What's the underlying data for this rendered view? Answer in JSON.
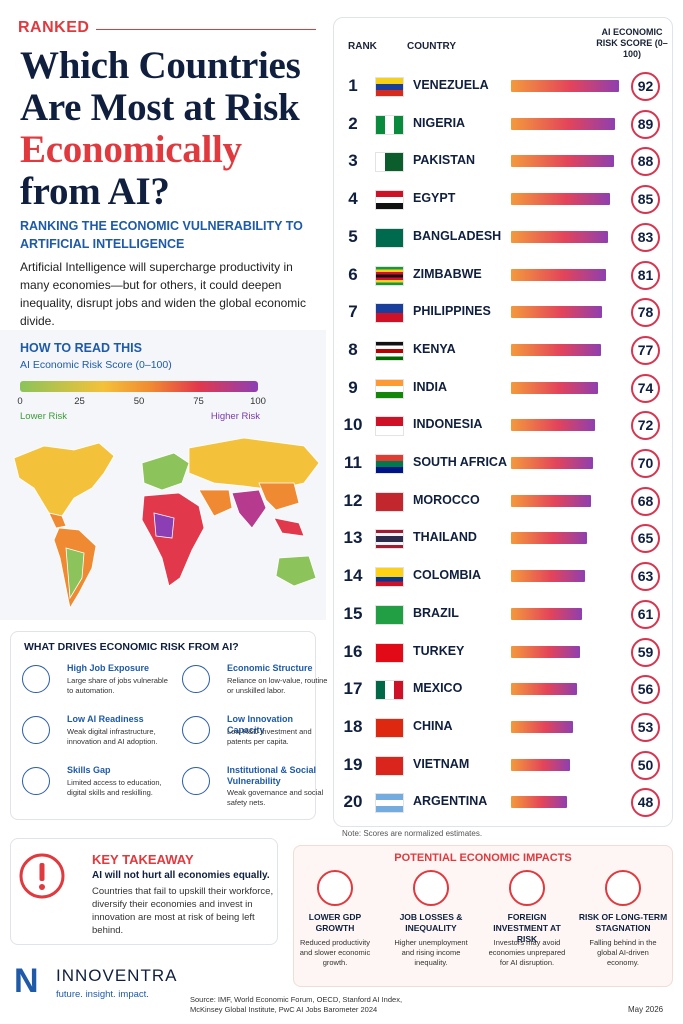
{
  "header": {
    "kicker": "RANKED",
    "title_lines": [
      "Which Countries",
      "Are Most at Risk"
    ],
    "title_highlight": "Economically",
    "title_end": "from AI?",
    "subtitle": "RANKING THE ECONOMIC VULNERABILITY TO ARTIFICIAL INTELLIGENCE",
    "intro": "Artificial Intelligence will supercharge productivity in many economies—but for others, it could deepen inequality, disrupt jobs and widen the global economic divide."
  },
  "how_to_read": {
    "title": "HOW TO READ THIS",
    "scale_label": "AI Economic Risk Score (0–100)",
    "ticks": [
      0,
      25,
      50,
      75,
      100
    ],
    "low_label": "Lower Risk",
    "high_label": "Higher Risk"
  },
  "chart_data": {
    "type": "bar",
    "orientation": "horizontal",
    "rank_header": "RANK",
    "category_header": "COUNTRY",
    "value_header": "AI ECONOMIC RISK SCORE (0–100)",
    "ranks": [
      1,
      2,
      3,
      4,
      5,
      6,
      7,
      8,
      9,
      10,
      11,
      12,
      13,
      14,
      15,
      16,
      17,
      18,
      19,
      20
    ],
    "categories": [
      "VENEZUELA",
      "NIGERIA",
      "PAKISTAN",
      "EGYPT",
      "BANGLADESH",
      "ZIMBABWE",
      "PHILIPPINES",
      "KENYA",
      "INDIA",
      "INDONESIA",
      "SOUTH AFRICA",
      "MOROCCO",
      "THAILAND",
      "COLOMBIA",
      "BRAZIL",
      "TURKEY",
      "MEXICO",
      "CHINA",
      "VIETNAM",
      "ARGENTINA"
    ],
    "values": [
      92,
      89,
      88,
      85,
      83,
      81,
      78,
      77,
      74,
      72,
      70,
      68,
      65,
      63,
      61,
      59,
      56,
      53,
      50,
      48
    ],
    "note": "Note: Scores are normalized estimates."
  },
  "drivers": {
    "title": "WHAT DRIVES ECONOMIC RISK FROM AI?",
    "items": [
      {
        "title": "High Job Exposure",
        "text": "Large share of jobs vulnerable to automation."
      },
      {
        "title": "Economic Structure",
        "text": "Reliance on low-value, routine or unskilled labor."
      },
      {
        "title": "Low AI Readiness",
        "text": "Weak digital infrastructure, innovation and AI adoption."
      },
      {
        "title": "Low Innovation Capacity",
        "text": "Low R&D investment and patents per capita."
      },
      {
        "title": "Skills Gap",
        "text": "Limited access to education, digital skills and reskilling."
      },
      {
        "title": "Institutional & Social Vulnerability",
        "text": "Weak governance and social safety nets."
      }
    ]
  },
  "takeaway": {
    "title": "KEY TAKEAWAY",
    "lead": "AI will not hurt all economies equally.",
    "text": "Countries that fail to upskill their workforce, diversify their economies and invest in innovation are most at risk of being left behind."
  },
  "impacts": {
    "title": "POTENTIAL ECONOMIC IMPACTS",
    "items": [
      {
        "title": "LOWER GDP GROWTH",
        "text": "Reduced productivity and slower economic growth."
      },
      {
        "title": "JOB LOSSES & INEQUALITY",
        "text": "Higher unemployment and rising income inequality."
      },
      {
        "title": "FOREIGN INVESTMENT AT RISK",
        "text": "Investors may avoid economies unprepared for AI disruption."
      },
      {
        "title": "RISK OF LONG-TERM STAGNATION",
        "text": "Falling behind in the global AI-driven economy."
      }
    ]
  },
  "brand": {
    "logo": "N",
    "name": "INNOVENTRA",
    "tagline": "future. insight. impact."
  },
  "source": "Source: IMF, World Economic Forum, OECD, Stanford AI Index, McKinsey Global Institute, PwC AI Jobs Barometer 2024",
  "date": "May 2026"
}
